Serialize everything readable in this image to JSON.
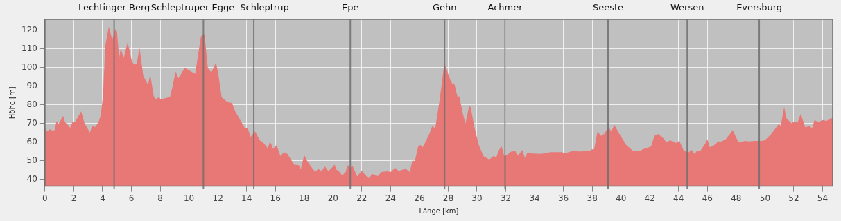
{
  "chart_data": {
    "type": "area",
    "xlabel": "Länge [km]",
    "ylabel": "Höhe [m]",
    "xlim": [
      0,
      54.7
    ],
    "ylim": [
      36.4,
      125.8
    ],
    "xticks": [
      0,
      2,
      4,
      6,
      8,
      10,
      12,
      14,
      16,
      18,
      20,
      22,
      24,
      26,
      28,
      30,
      32,
      34,
      36,
      38,
      40,
      42,
      44,
      46,
      48,
      50,
      52,
      54
    ],
    "yticks": [
      40,
      50,
      60,
      70,
      80,
      90,
      100,
      110,
      120
    ],
    "grid": true,
    "legend": false,
    "marker": "none",
    "series": [
      {
        "color": "#e87876",
        "x": [
          0,
          0.14,
          0.35,
          0.5,
          0.67,
          0.8,
          0.94,
          1.15,
          1.26,
          1.39,
          1.6,
          1.74,
          1.9,
          2.08,
          2.51,
          2.75,
          3.12,
          3.28,
          3.47,
          3.71,
          3.87,
          4.03,
          4.19,
          4.43,
          4.67,
          4.88,
          5.0,
          5.15,
          5.26,
          5.47,
          5.74,
          6.03,
          6.19,
          6.38,
          6.56,
          6.83,
          7.15,
          7.31,
          7.55,
          7.71,
          7.87,
          8.11,
          8.27,
          8.59,
          8.67,
          8.83,
          9.07,
          9.26,
          9.71,
          10.0,
          10.43,
          10.83,
          11.07,
          11.31,
          11.55,
          11.87,
          12.03,
          12.27,
          12.67,
          12.99,
          13.2,
          13.47,
          13.87,
          14.08,
          14.27,
          14.59,
          14.91,
          15.15,
          15.47,
          15.63,
          15.84,
          16.08,
          16.35,
          16.59,
          16.83,
          17.31,
          17.63,
          17.76,
          18.0,
          18.24,
          18.64,
          18.8,
          18.96,
          19.2,
          19.44,
          19.68,
          20.0,
          20.11,
          20.24,
          20.4,
          20.64,
          20.88,
          21.0,
          21.2,
          21.36,
          21.68,
          22.0,
          22.32,
          22.51,
          22.72,
          23.12,
          23.36,
          23.76,
          24.0,
          24.32,
          24.56,
          25.04,
          25.33,
          25.52,
          25.68,
          25.92,
          26.08,
          26.24,
          26.4,
          26.69,
          26.9,
          27.09,
          27.41,
          27.73,
          27.89,
          28.13,
          28.29,
          28.42,
          28.66,
          28.77,
          29.01,
          29.2,
          29.46,
          29.57,
          29.81,
          30.13,
          30.45,
          30.85,
          31.17,
          31.33,
          31.49,
          31.7,
          31.89,
          32.13,
          32.37,
          32.66,
          32.85,
          33.14,
          33.33,
          33.49,
          33.89,
          34.45,
          35.09,
          35.89,
          36.13,
          36.61,
          37.17,
          37.81,
          37.97,
          38.13,
          38.37,
          38.61,
          38.85,
          39.12,
          39.33,
          39.54,
          39.97,
          40.37,
          40.85,
          41.33,
          41.49,
          41.89,
          42.1,
          42.32,
          42.58,
          42.93,
          43.17,
          43.41,
          43.81,
          44.05,
          44.37,
          44.72,
          44.88,
          45.12,
          45.28,
          45.52,
          45.84,
          46.0,
          46.16,
          46.4,
          46.75,
          46.96,
          47.28,
          47.76,
          48.16,
          48.64,
          48.88,
          49.28,
          49.76,
          50.0,
          50.4,
          50.72,
          50.96,
          51.09,
          51.33,
          51.49,
          51.84,
          52.08,
          52.24,
          52.48,
          52.8,
          53.12,
          53.25,
          53.44,
          53.73,
          54.0,
          54.27,
          54.56,
          54.7
        ],
        "values": [
          67.6,
          65.8,
          67,
          66.2,
          66.4,
          71.3,
          69.7,
          72.5,
          74.1,
          70.7,
          69.2,
          67.6,
          70.7,
          70.7,
          76.5,
          70,
          65.2,
          68.8,
          68,
          70.7,
          74.3,
          85.2,
          111.9,
          121.8,
          114.9,
          120.6,
          119.2,
          105.2,
          110.1,
          105.2,
          113.7,
          103.4,
          101.6,
          102.2,
          110.7,
          95.5,
          90.7,
          96.1,
          84.6,
          82.8,
          84,
          82.8,
          83.4,
          84,
          84,
          88.8,
          97.9,
          94.3,
          99.8,
          98.5,
          96.7,
          116.7,
          117.9,
          99.8,
          97.3,
          102.8,
          96.7,
          84,
          81.5,
          81,
          76.7,
          73.1,
          67.6,
          67.6,
          62.8,
          65.8,
          61,
          59.8,
          56.7,
          60.4,
          56.4,
          58.5,
          52.5,
          54.7,
          53.7,
          47.9,
          47.6,
          45.5,
          53.1,
          49.5,
          45.2,
          44.2,
          45.8,
          44.6,
          47,
          44.4,
          47,
          48,
          45.2,
          44.6,
          42.2,
          44,
          47.6,
          46.4,
          47.3,
          41.6,
          44.8,
          41.8,
          40.7,
          43,
          41.8,
          44,
          44.4,
          44,
          46.2,
          44.6,
          45.8,
          44,
          50.3,
          49.8,
          57.9,
          58.5,
          57.3,
          59.8,
          64.4,
          68.8,
          67.1,
          82.8,
          102.2,
          99.2,
          93.7,
          91.3,
          91.5,
          84,
          84.6,
          75.5,
          70,
          79.7,
          78.5,
          68.2,
          58.5,
          52.5,
          50.7,
          52.7,
          51.6,
          55.2,
          57.9,
          52.5,
          53.5,
          54.9,
          55.2,
          52.7,
          55.9,
          51.5,
          54.2,
          53.9,
          53.7,
          54.7,
          54.7,
          54.1,
          55.2,
          55,
          55.2,
          56.1,
          56.1,
          65.8,
          63.4,
          64.6,
          68.2,
          65.8,
          69.2,
          63.4,
          58.5,
          55.2,
          55.2,
          56.1,
          57.1,
          57.9,
          63.4,
          64.4,
          62.2,
          59.8,
          61,
          59.6,
          60.8,
          55.2,
          54.7,
          56,
          53.6,
          55.5,
          55.5,
          59.1,
          61.5,
          57.3,
          57.9,
          60.4,
          60.3,
          61.6,
          66.4,
          59.8,
          60.7,
          60.4,
          60.7,
          60.7,
          61,
          64.1,
          67.2,
          69.7,
          68.5,
          78.8,
          72.8,
          70.1,
          71.3,
          70.1,
          75.2,
          67.9,
          68.8,
          67.1,
          71.9,
          70.7,
          71.9,
          71.3,
          72.8,
          72.8
        ]
      }
    ],
    "ref_lines": [
      {
        "axis": "x",
        "value": 4.8,
        "label": "Lechtinger Berg",
        "color": "#6e6e6e"
      },
      {
        "axis": "x",
        "value": 11.0,
        "label": "Schleptruper Egge",
        "color": "#6e6e6e"
      },
      {
        "axis": "x",
        "value": 14.5,
        "label": "Schleptrup",
        "color": "#6e6e6e"
      },
      {
        "axis": "x",
        "value": 21.2,
        "label": "Epe",
        "color": "#6e6e6e"
      },
      {
        "axis": "x",
        "value": 27.75,
        "label": "Gehn",
        "color": "#6e6e6e"
      },
      {
        "axis": "x",
        "value": 31.95,
        "label": "Achmer",
        "color": "#6e6e6e"
      },
      {
        "axis": "x",
        "value": 39.1,
        "label": "Seeste",
        "color": "#6e6e6e"
      },
      {
        "axis": "x",
        "value": 44.6,
        "label": "Wersen",
        "color": "#6e6e6e"
      },
      {
        "axis": "x",
        "value": 49.6,
        "label": "Eversburg",
        "color": "#6e6e6e"
      }
    ]
  }
}
